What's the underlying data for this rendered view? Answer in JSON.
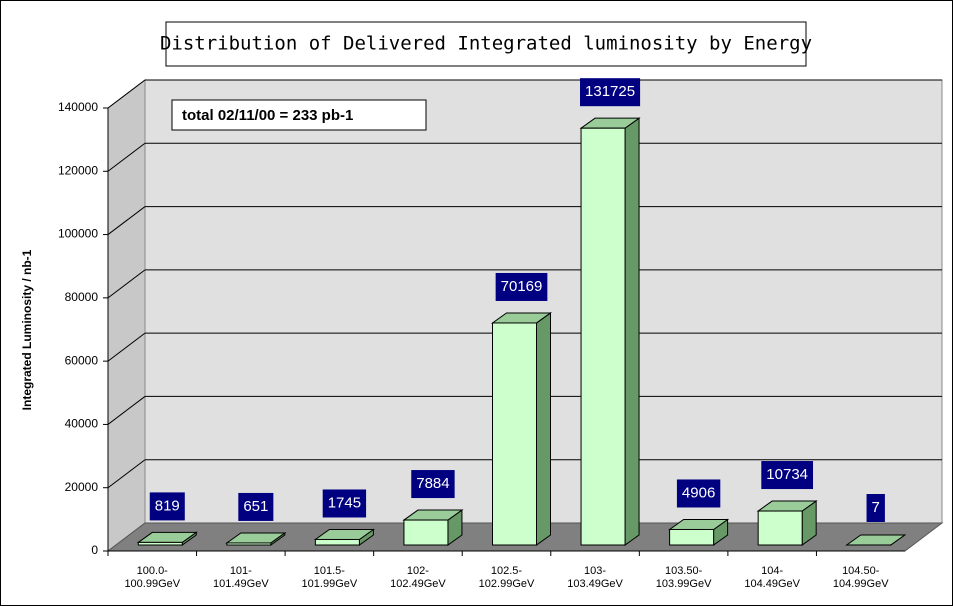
{
  "chart_data": {
    "type": "bar3d",
    "title": "Distribution of Delivered Integrated luminosity by Energy",
    "annotation": "total 02/11/00 = 233 pb-1",
    "y_label": "Integrated Luminosity / nb-1",
    "categories": [
      "100.0-\n100.99GeV",
      "101-\n101.49GeV",
      "101.5-\n101.99GeV",
      "102-\n102.49GeV",
      "102.5-\n102.99GeV",
      "103-\n103.49GeV",
      "103.50-\n103.99GeV",
      "104-\n104.49GeV",
      "104.50-\n104.99GeV"
    ],
    "values": [
      819,
      651,
      1745,
      7884,
      70169,
      131725,
      4906,
      10734,
      7
    ],
    "color": "#ccffcc",
    "ylim": [
      0,
      140000
    ],
    "yticks": [
      0,
      20000,
      40000,
      60000,
      80000,
      100000,
      120000,
      140000
    ],
    "grid": true
  }
}
